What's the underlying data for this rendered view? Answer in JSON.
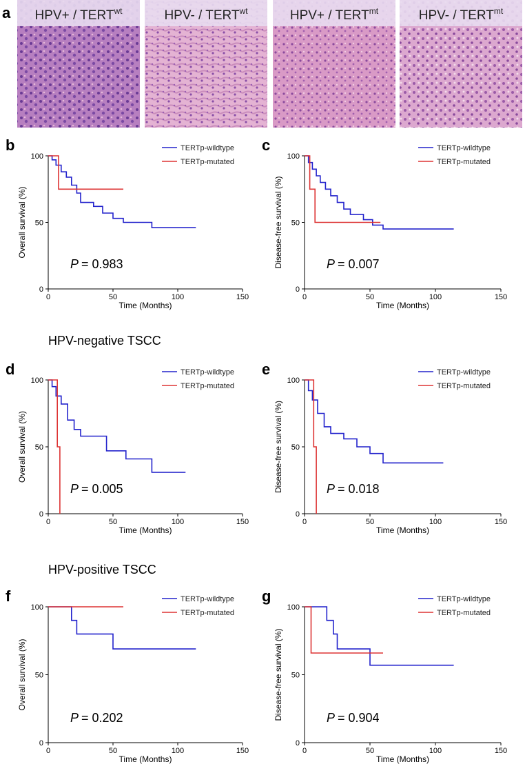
{
  "panel_a": {
    "letter": "a",
    "images": [
      {
        "label": "HPV+ / TERT",
        "sup": "wt"
      },
      {
        "label": "HPV- / TERT",
        "sup": "wt"
      },
      {
        "label": "HPV+ / TERT",
        "sup": "mt"
      },
      {
        "label": "HPV- / TERT",
        "sup": "mt"
      }
    ]
  },
  "sections": [
    "HPV-negative TSCC",
    "HPV-positive TSCC"
  ],
  "chart_data": [
    {
      "type": "line",
      "panel": "b",
      "ylabel": "Overall survival (%)",
      "xlabel": "Time (Months)",
      "p_label": "P",
      "p_value": "= 0.983",
      "xlim": [
        0,
        150
      ],
      "ylim": [
        0,
        100
      ],
      "xticks": [
        0,
        50,
        100,
        150
      ],
      "yticks": [
        0,
        50,
        100
      ],
      "series": [
        {
          "name": "TERTp-wildtype",
          "color": "#2222cc",
          "x": [
            0,
            3,
            3,
            6,
            6,
            10,
            10,
            14,
            14,
            18,
            18,
            22,
            22,
            25,
            25,
            35,
            35,
            42,
            42,
            50,
            50,
            58,
            58,
            80,
            80,
            114
          ],
          "values": [
            100,
            100,
            97,
            97,
            93,
            93,
            88,
            88,
            84,
            84,
            78,
            78,
            72,
            72,
            65,
            65,
            62,
            62,
            57,
            57,
            53,
            53,
            50,
            50,
            46,
            46
          ]
        },
        {
          "name": "TERTp-mutated",
          "color": "#dd3333",
          "x": [
            0,
            8,
            8,
            58
          ],
          "values": [
            100,
            100,
            75,
            75
          ]
        }
      ]
    },
    {
      "type": "line",
      "panel": "c",
      "ylabel": "Disease-free survival (%)",
      "xlabel": "Time (Months)",
      "p_label": "P",
      "p_value": "= 0.007",
      "xlim": [
        0,
        150
      ],
      "ylim": [
        0,
        100
      ],
      "xticks": [
        0,
        50,
        100,
        150
      ],
      "yticks": [
        0,
        50,
        100
      ],
      "series": [
        {
          "name": "TERTp-wildtype",
          "color": "#2222cc",
          "x": [
            0,
            3,
            3,
            6,
            6,
            9,
            9,
            12,
            12,
            16,
            16,
            20,
            20,
            25,
            25,
            30,
            30,
            35,
            35,
            45,
            45,
            52,
            52,
            60,
            60,
            114
          ],
          "values": [
            100,
            100,
            95,
            95,
            90,
            90,
            85,
            85,
            80,
            80,
            75,
            75,
            70,
            70,
            65,
            65,
            60,
            60,
            56,
            56,
            52,
            52,
            48,
            48,
            45,
            45
          ]
        },
        {
          "name": "TERTp-mutated",
          "color": "#dd3333",
          "x": [
            0,
            4,
            4,
            8,
            8,
            58
          ],
          "values": [
            100,
            100,
            75,
            75,
            50,
            50
          ]
        }
      ]
    },
    {
      "type": "line",
      "panel": "d",
      "ylabel": "Overall survival (%)",
      "xlabel": "Time (Months)",
      "p_label": "P",
      "p_value": "= 0.005",
      "xlim": [
        0,
        150
      ],
      "ylim": [
        0,
        100
      ],
      "xticks": [
        0,
        50,
        100,
        150
      ],
      "yticks": [
        0,
        50,
        100
      ],
      "series": [
        {
          "name": "TERTp-wildtype",
          "color": "#2222cc",
          "x": [
            0,
            3,
            3,
            6,
            6,
            10,
            10,
            15,
            15,
            20,
            20,
            25,
            25,
            45,
            45,
            60,
            60,
            80,
            80,
            106
          ],
          "values": [
            100,
            100,
            95,
            95,
            88,
            88,
            82,
            82,
            70,
            70,
            63,
            63,
            58,
            58,
            47,
            47,
            41,
            41,
            31,
            31
          ]
        },
        {
          "name": "TERTp-mutated",
          "color": "#dd3333",
          "x": [
            0,
            7,
            7,
            9,
            9
          ],
          "values": [
            100,
            100,
            50,
            50,
            0
          ]
        }
      ]
    },
    {
      "type": "line",
      "panel": "e",
      "ylabel": "Disease-free survival (%)",
      "xlabel": "Time (Months)",
      "p_label": "P",
      "p_value": "= 0.018",
      "xlim": [
        0,
        150
      ],
      "ylim": [
        0,
        100
      ],
      "xticks": [
        0,
        50,
        100,
        150
      ],
      "yticks": [
        0,
        50,
        100
      ],
      "series": [
        {
          "name": "TERTp-wildtype",
          "color": "#2222cc",
          "x": [
            0,
            3,
            3,
            6,
            6,
            10,
            10,
            15,
            15,
            20,
            20,
            30,
            30,
            40,
            40,
            50,
            50,
            60,
            60,
            106
          ],
          "values": [
            100,
            100,
            92,
            92,
            85,
            85,
            75,
            75,
            65,
            65,
            60,
            60,
            56,
            56,
            50,
            50,
            45,
            45,
            38,
            38
          ]
        },
        {
          "name": "TERTp-mutated",
          "color": "#dd3333",
          "x": [
            0,
            7,
            7,
            9,
            9
          ],
          "values": [
            100,
            100,
            50,
            50,
            0
          ]
        }
      ]
    },
    {
      "type": "line",
      "panel": "f",
      "ylabel": "Overall survival (%)",
      "xlabel": "Time (Months)",
      "p_label": "P",
      "p_value": "= 0.202",
      "xlim": [
        0,
        150
      ],
      "ylim": [
        0,
        100
      ],
      "xticks": [
        0,
        50,
        100,
        150
      ],
      "yticks": [
        0,
        50,
        100
      ],
      "series": [
        {
          "name": "TERTp-wildtype",
          "color": "#2222cc",
          "x": [
            0,
            18,
            18,
            22,
            22,
            50,
            50,
            114
          ],
          "values": [
            100,
            100,
            90,
            90,
            80,
            80,
            69,
            69
          ]
        },
        {
          "name": "TERTp-mutated",
          "color": "#dd3333",
          "x": [
            0,
            58
          ],
          "values": [
            100,
            100
          ]
        }
      ]
    },
    {
      "type": "line",
      "panel": "g",
      "ylabel": "Disease-free survival (%)",
      "xlabel": "Time (Months)",
      "p_label": "P",
      "p_value": "= 0.904",
      "xlim": [
        0,
        150
      ],
      "ylim": [
        0,
        100
      ],
      "xticks": [
        0,
        50,
        100,
        150
      ],
      "yticks": [
        0,
        50,
        100
      ],
      "series": [
        {
          "name": "TERTp-wildtype",
          "color": "#2222cc",
          "x": [
            0,
            17,
            17,
            22,
            22,
            25,
            25,
            50,
            50,
            114
          ],
          "values": [
            100,
            100,
            90,
            90,
            80,
            80,
            69,
            69,
            57,
            57
          ]
        },
        {
          "name": "TERTp-mutated",
          "color": "#dd3333",
          "x": [
            0,
            5,
            5,
            60
          ],
          "values": [
            100,
            100,
            66,
            66
          ]
        }
      ]
    }
  ]
}
